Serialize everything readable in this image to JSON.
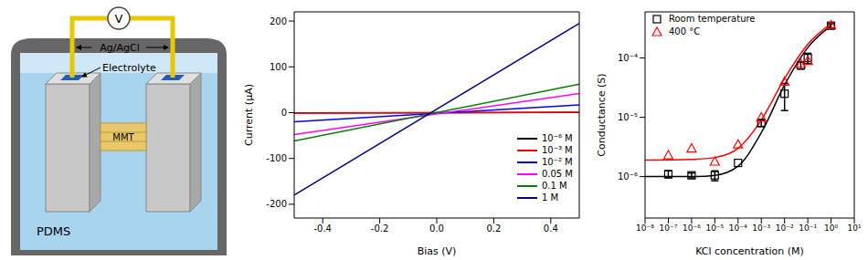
{
  "diagram": {
    "meter": "V",
    "electrodes": "Ag/AgCl",
    "electrolyte": "Electrolyte",
    "channel": "MMT",
    "substrate": "PDMS"
  },
  "chart_data": [
    {
      "type": "line",
      "x_label": "Bias (V)",
      "y_label": "Current (μA)",
      "xlim": [
        -0.5,
        0.5
      ],
      "xticks": [
        -0.4,
        -0.2,
        {
          "value": 0,
          "label": "0.0"
        },
        0.2,
        0.4
      ],
      "ylim": [
        -230,
        220
      ],
      "yticks": [
        -200,
        -100,
        0,
        100,
        200
      ],
      "legend": "lower right",
      "series": [
        {
          "name": "10⁻⁶ M",
          "color": "#000000",
          "x": [
            -0.5,
            0.5
          ],
          "values": [
            -0.5,
            0.5
          ]
        },
        {
          "name": "10⁻³ M",
          "color": "#ff0000",
          "x": [
            -0.5,
            0.5
          ],
          "values": [
            -1,
            1
          ]
        },
        {
          "name": "10⁻² M",
          "color": "#0000ff",
          "x": [
            -0.5,
            0.5
          ],
          "values": [
            -20,
            17
          ]
        },
        {
          "name": "0.05 M",
          "color": "#ff00ff",
          "x": [
            -0.5,
            0.5
          ],
          "values": [
            -48,
            42
          ]
        },
        {
          "name": "0.1 M",
          "color": "#008000",
          "x": [
            -0.5,
            0.5
          ],
          "values": [
            -62,
            62
          ]
        },
        {
          "name": "1 M",
          "color": "#000080",
          "x": [
            -0.5,
            0.5
          ],
          "values": [
            -180,
            195
          ]
        }
      ]
    },
    {
      "type": "scatter",
      "x_label": "KCl concentration (M)",
      "y_label": "Conductance (S)",
      "log": true,
      "xlim": [
        1e-08,
        10
      ],
      "xticks": [
        {
          "value": 1e-08,
          "label": "10⁻⁸"
        },
        {
          "value": 1e-07,
          "label": "10⁻⁷"
        },
        {
          "value": 1e-06,
          "label": "10⁻⁶"
        },
        {
          "value": 1e-05,
          "label": "10⁻⁵"
        },
        {
          "value": 0.0001,
          "label": "10⁻⁴"
        },
        {
          "value": 0.001,
          "label": "10⁻³"
        },
        {
          "value": 0.01,
          "label": "10⁻²"
        },
        {
          "value": 0.1,
          "label": "10⁻¹"
        },
        {
          "value": 1,
          "label": "10⁰"
        },
        {
          "value": 10,
          "label": "10¹"
        }
      ],
      "ylim": [
        2e-07,
        0.0006
      ],
      "yticks": [
        {
          "value": 1e-06,
          "label": "10⁻⁶"
        },
        {
          "value": 1e-05,
          "label": "10⁻⁵"
        },
        {
          "value": 0.0001,
          "label": "10⁻⁴"
        }
      ],
      "legend": "upper left",
      "series": [
        {
          "name": "Room temperature",
          "type": "scatter",
          "marker": "square",
          "color": "#000000",
          "x": [
            1e-07,
            1e-06,
            1e-05,
            0.0001,
            0.001,
            0.01,
            0.05,
            0.1,
            1
          ],
          "values": [
            1.1e-06,
            1.05e-06,
            1.05e-06,
            1.7e-06,
            8e-06,
            2.5e-05,
            7.5e-05,
            0.0001,
            0.00035
          ],
          "errors": [
            1.5e-07,
            1e-07,
            2e-07,
            0,
            1e-06,
            1.2e-05,
            1e-05,
            2e-05,
            3e-05
          ]
        },
        {
          "name": "400 °C",
          "type": "scatter",
          "marker": "triangle",
          "color": "#ff0000",
          "x": [
            1e-07,
            1e-06,
            1e-05,
            0.0001,
            0.001,
            0.01,
            0.05,
            0.1,
            1
          ],
          "values": [
            2.3e-06,
            3e-06,
            1.8e-06,
            3.5e-06,
            1e-05,
            4e-05,
            8e-05,
            9e-05,
            0.00036
          ]
        },
        {
          "type": "line",
          "color": "#000000",
          "x": [
            1e-08,
            1e-06,
            1e-05,
            0.0001,
            0.001,
            0.01,
            0.1,
            1
          ],
          "values": [
            1e-06,
            1e-06,
            1.05e-06,
            1.5e-06,
            5.5e-06,
            3.5e-05,
            0.00015,
            0.00035
          ]
        },
        {
          "type": "line",
          "color": "#ff0000",
          "x": [
            1e-08,
            1e-06,
            1e-05,
            0.0001,
            0.001,
            0.01,
            0.1,
            1
          ],
          "values": [
            1.9e-06,
            1.95e-06,
            2.1e-06,
            3e-06,
            9e-06,
            4.5e-05,
            0.00017,
            0.00038
          ]
        }
      ]
    }
  ]
}
